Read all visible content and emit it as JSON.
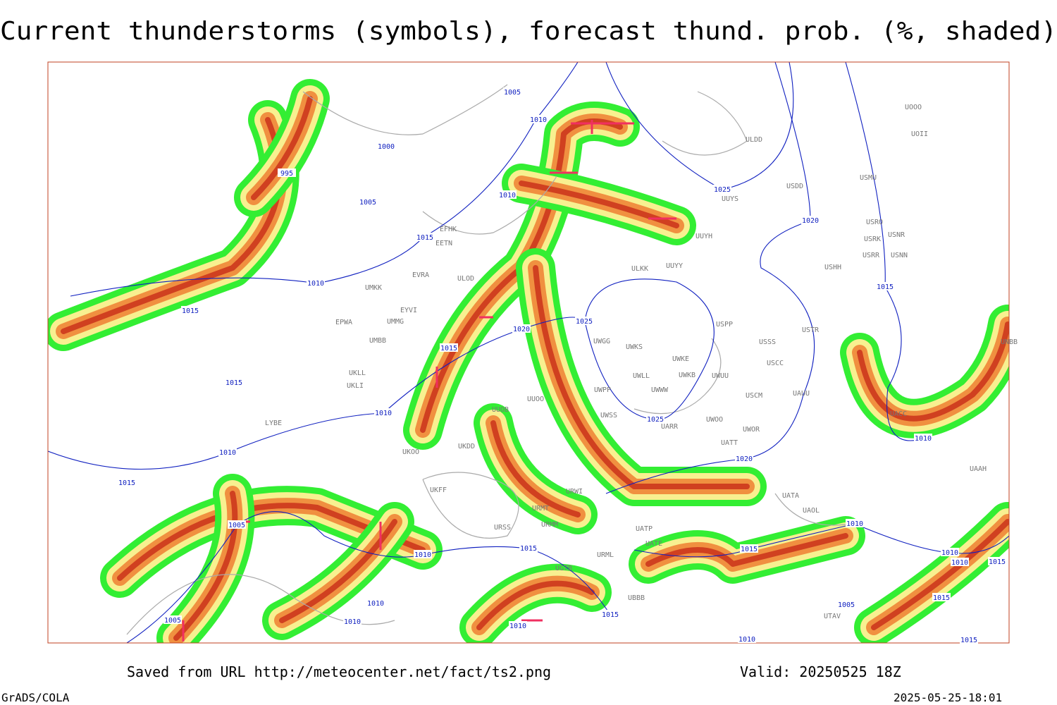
{
  "header": {
    "title": "Current thunderstorms (symbols), forecast thund. prob. (%, shaded)"
  },
  "isobars": [
    "1005",
    "1010",
    "1000",
    "995",
    "1005",
    "1010",
    "1025",
    "1020",
    "1015",
    "1010",
    "1015",
    "1015",
    "1025",
    "1020",
    "1015",
    "1015",
    "1010",
    "1025",
    "1010",
    "1020",
    "1015",
    "1010",
    "1005",
    "1015",
    "1010",
    "1015",
    "1010",
    "1010",
    "1010",
    "1015",
    "1010",
    "1010",
    "1015",
    "1005",
    "1005",
    "1010",
    "1015",
    "1010",
    "1015"
  ],
  "stations": [
    "ULDD",
    "USDD",
    "USMU",
    "UUYS",
    "UOOO",
    "UOII",
    "USRO",
    "USRK",
    "USNR",
    "USRR",
    "USNN",
    "USHH",
    "UUYH",
    "ULKK",
    "UUYY",
    "EFHK",
    "EETN",
    "EVRA",
    "ULOD",
    "UMKK",
    "EYVI",
    "EPWA",
    "UMMG",
    "UMBB",
    "USPP",
    "USTR",
    "USSS",
    "UWGG",
    "UWKS",
    "UWKE",
    "USCC",
    "UWKB",
    "UWUU",
    "UWLL",
    "UWPP",
    "UWWW",
    "USCM",
    "UAUU",
    "UUOO",
    "UUOB",
    "UWSS",
    "UARR",
    "UWOO",
    "UWOR",
    "UATT",
    "UKLL",
    "UKLI",
    "LYBE",
    "UKOO",
    "UKDD",
    "UKFF",
    "URWI",
    "URMT",
    "URMM",
    "URSS",
    "UATP",
    "UATE",
    "URML",
    "UGTB",
    "UBBB",
    "UATA",
    "UAOL",
    "UTAV",
    "UNBB",
    "UACC",
    "UAAH"
  ],
  "footer": {
    "source": "Saved from URL http://meteocenter.net/fact/ts2.png",
    "valid": "Valid: 20250525 18Z",
    "software": "GrADS/COLA",
    "timestamp": "2025-05-25-18:01"
  }
}
